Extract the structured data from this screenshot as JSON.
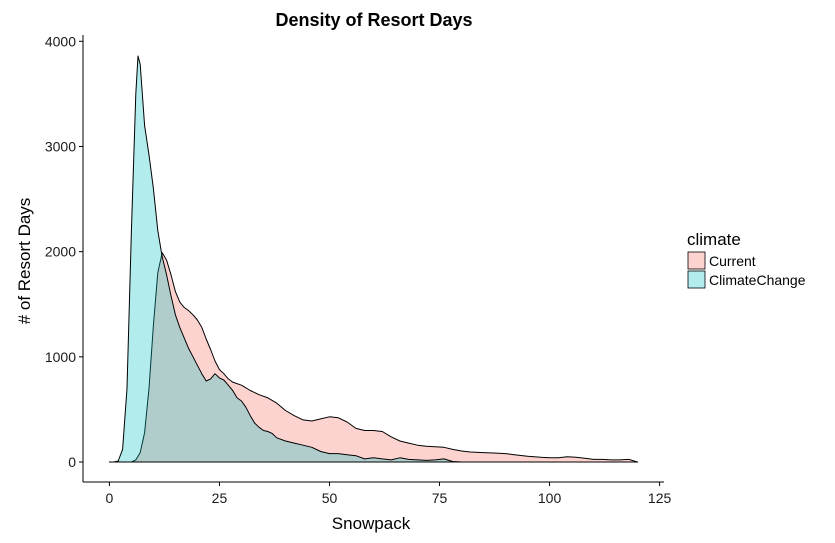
{
  "chart_data": {
    "type": "area",
    "title": "Density of Resort Days",
    "xlabel": "Snowpack",
    "ylabel": "# of Resort Days",
    "xlim": [
      -6,
      126
    ],
    "ylim": [
      -190,
      4060
    ],
    "x_ticks": [
      0,
      25,
      50,
      75,
      100,
      125
    ],
    "y_ticks": [
      0,
      1000,
      2000,
      3000,
      4000
    ],
    "grid": false,
    "legend_position": "right",
    "legend_title": "climate",
    "series": [
      {
        "name": "Current",
        "color": "#F8766D",
        "fill_opacity": 0.32,
        "points": [
          [
            0,
            0
          ],
          [
            5,
            0
          ],
          [
            6,
            20
          ],
          [
            7,
            90
          ],
          [
            8,
            280
          ],
          [
            9,
            700
          ],
          [
            10,
            1300
          ],
          [
            11,
            1800
          ],
          [
            12,
            1990
          ],
          [
            13,
            1920
          ],
          [
            14,
            1780
          ],
          [
            15,
            1620
          ],
          [
            16,
            1520
          ],
          [
            17,
            1470
          ],
          [
            18,
            1440
          ],
          [
            19,
            1400
          ],
          [
            20,
            1350
          ],
          [
            21,
            1280
          ],
          [
            22,
            1170
          ],
          [
            23,
            1070
          ],
          [
            24,
            960
          ],
          [
            25,
            880
          ],
          [
            26,
            840
          ],
          [
            27,
            790
          ],
          [
            28,
            760
          ],
          [
            30,
            730
          ],
          [
            32,
            680
          ],
          [
            34,
            640
          ],
          [
            36,
            610
          ],
          [
            38,
            560
          ],
          [
            40,
            490
          ],
          [
            42,
            440
          ],
          [
            44,
            400
          ],
          [
            46,
            390
          ],
          [
            48,
            410
          ],
          [
            50,
            430
          ],
          [
            52,
            420
          ],
          [
            54,
            380
          ],
          [
            56,
            320
          ],
          [
            58,
            300
          ],
          [
            60,
            300
          ],
          [
            62,
            290
          ],
          [
            64,
            240
          ],
          [
            66,
            200
          ],
          [
            68,
            180
          ],
          [
            70,
            160
          ],
          [
            72,
            150
          ],
          [
            74,
            145
          ],
          [
            76,
            140
          ],
          [
            78,
            120
          ],
          [
            80,
            105
          ],
          [
            82,
            95
          ],
          [
            85,
            90
          ],
          [
            88,
            85
          ],
          [
            90,
            80
          ],
          [
            92,
            70
          ],
          [
            95,
            55
          ],
          [
            98,
            45
          ],
          [
            100,
            40
          ],
          [
            102,
            40
          ],
          [
            104,
            50
          ],
          [
            106,
            45
          ],
          [
            108,
            35
          ],
          [
            110,
            25
          ],
          [
            112,
            25
          ],
          [
            114,
            20
          ],
          [
            116,
            20
          ],
          [
            118,
            25
          ],
          [
            120,
            0
          ]
        ]
      },
      {
        "name": "ClimateChange",
        "color": "#00BFC4",
        "fill_opacity": 0.3,
        "points": [
          [
            0,
            0
          ],
          [
            1,
            0
          ],
          [
            2,
            10
          ],
          [
            3,
            120
          ],
          [
            4,
            700
          ],
          [
            5,
            2200
          ],
          [
            6,
            3500
          ],
          [
            6.5,
            3860
          ],
          [
            7,
            3780
          ],
          [
            8,
            3200
          ],
          [
            9,
            2920
          ],
          [
            10,
            2600
          ],
          [
            11,
            2200
          ],
          [
            12,
            1950
          ],
          [
            13,
            1780
          ],
          [
            14,
            1580
          ],
          [
            15,
            1400
          ],
          [
            16,
            1280
          ],
          [
            17,
            1180
          ],
          [
            18,
            1080
          ],
          [
            19,
            1000
          ],
          [
            20,
            920
          ],
          [
            21,
            840
          ],
          [
            22,
            770
          ],
          [
            23,
            790
          ],
          [
            24,
            840
          ],
          [
            25,
            800
          ],
          [
            26,
            780
          ],
          [
            27,
            730
          ],
          [
            28,
            680
          ],
          [
            29,
            610
          ],
          [
            30,
            580
          ],
          [
            31,
            520
          ],
          [
            32,
            440
          ],
          [
            33,
            370
          ],
          [
            34,
            330
          ],
          [
            35,
            300
          ],
          [
            36,
            290
          ],
          [
            37,
            270
          ],
          [
            38,
            230
          ],
          [
            40,
            200
          ],
          [
            42,
            180
          ],
          [
            44,
            160
          ],
          [
            46,
            140
          ],
          [
            48,
            100
          ],
          [
            50,
            80
          ],
          [
            52,
            80
          ],
          [
            54,
            70
          ],
          [
            56,
            60
          ],
          [
            58,
            30
          ],
          [
            60,
            40
          ],
          [
            62,
            30
          ],
          [
            64,
            20
          ],
          [
            66,
            40
          ],
          [
            68,
            25
          ],
          [
            70,
            20
          ],
          [
            72,
            15
          ],
          [
            74,
            20
          ],
          [
            76,
            30
          ],
          [
            78,
            5
          ],
          [
            80,
            0
          ],
          [
            120,
            0
          ]
        ]
      }
    ]
  }
}
